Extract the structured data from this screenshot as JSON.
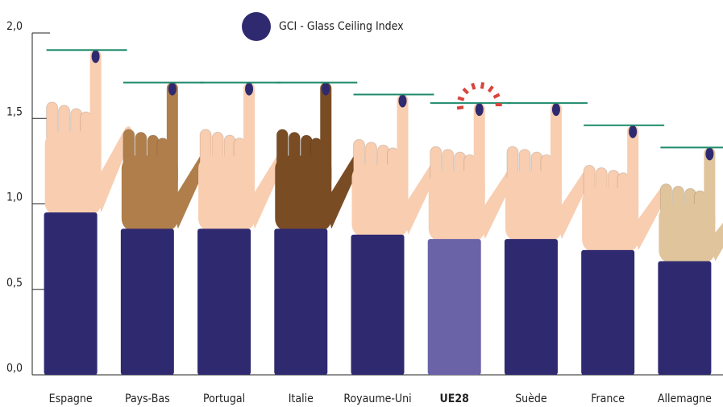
{
  "chart_data": {
    "type": "hand-bar",
    "legend": "GCI - Glass Ceiling Index",
    "legend_color": "#2f2a70",
    "categories": [
      "Espagne",
      "Pays-Bas",
      "Portugal",
      "Italie",
      "Royaume-Uni",
      "UE28",
      "Suède",
      "France",
      "Allemagne"
    ],
    "values": [
      1.9,
      1.71,
      1.71,
      1.71,
      1.64,
      1.59,
      1.59,
      1.46,
      1.33
    ],
    "skin_colors": [
      "#f8cdb0",
      "#b07e4a",
      "#f8cdb0",
      "#7a4c24",
      "#f8cdb0",
      "#f8cdb0",
      "#f8cdb0",
      "#f8cdb0",
      "#e0c49c"
    ],
    "bar_color": "#2f2a70",
    "highlight_color": "#6a63a8",
    "highlight_index": 5,
    "line_color": "#1f8a6c",
    "ylim": [
      0,
      2
    ],
    "yticks": [
      {
        "value": 0,
        "label": "0,0"
      },
      {
        "value": 0.5,
        "label": "0,5"
      },
      {
        "value": 1,
        "label": "1,0"
      },
      {
        "value": 1.5,
        "label": "1,5"
      },
      {
        "value": 2,
        "label": "2,0"
      }
    ]
  }
}
